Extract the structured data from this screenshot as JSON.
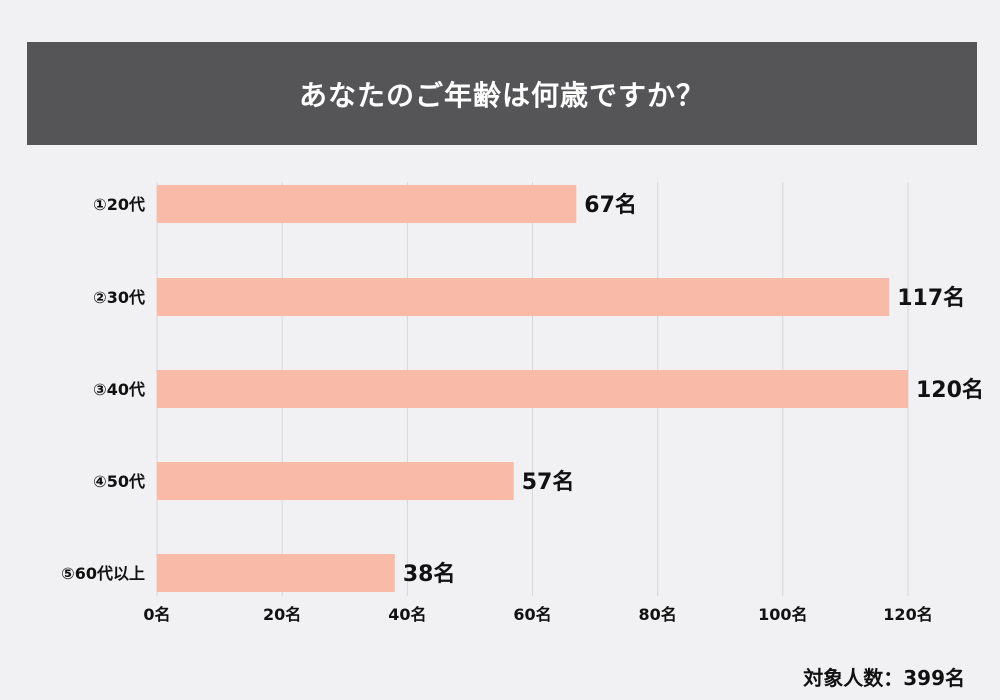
{
  "header": {
    "title": "あなたのご年齢は何歳ですか？"
  },
  "chart_data": {
    "type": "bar",
    "orientation": "horizontal",
    "title": "あなたのご年齢は何歳ですか？",
    "categories": [
      "①20代",
      "②30代",
      "③40代",
      "④50代",
      "⑤60代以上"
    ],
    "values": [
      67,
      117,
      120,
      57,
      38
    ],
    "value_labels": [
      "67名",
      "117名",
      "120名",
      "57名",
      "38名"
    ],
    "x_ticks": [
      0,
      20,
      40,
      60,
      80,
      100,
      120
    ],
    "x_tick_labels": [
      "0名",
      "20名",
      "40名",
      "60名",
      "80名",
      "100名",
      "120名"
    ],
    "xlim": [
      0,
      120
    ],
    "xlabel": "",
    "ylabel": "",
    "grid": true,
    "bar_color": "#f9bba8",
    "grid_color": "#d6d5d8"
  },
  "footer": {
    "total_label": "対象人数：399名"
  }
}
